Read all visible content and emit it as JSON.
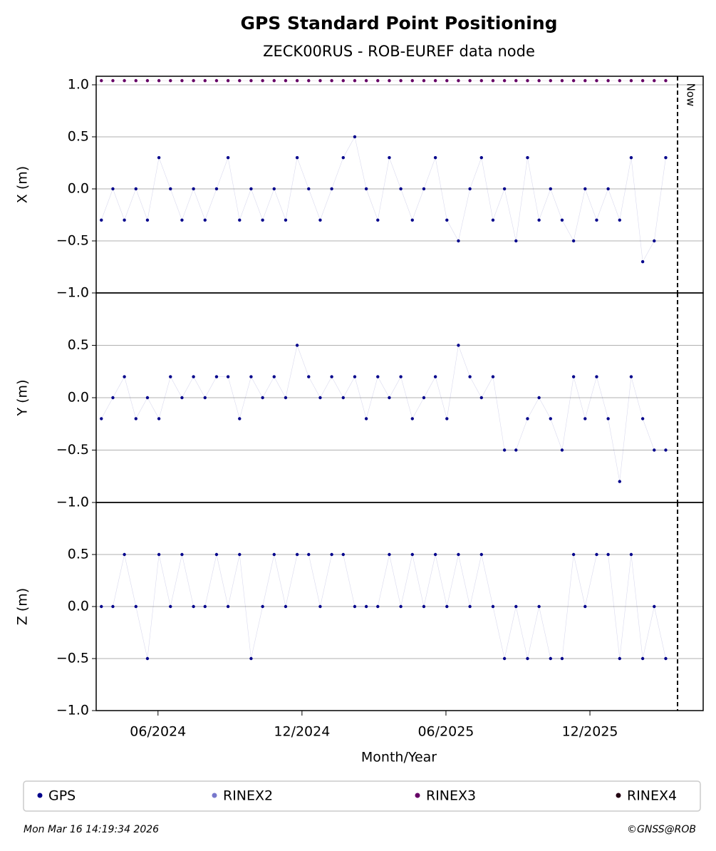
{
  "legend": [
    {
      "name": "GPS",
      "color": "#00008b"
    },
    {
      "name": "RINEX2",
      "color": "#7777cc"
    },
    {
      "name": "RINEX3",
      "color": "#660066"
    },
    {
      "name": "RINEX4",
      "color": "#220011"
    }
  ],
  "footer_left": "Mon Mar 16 14:19:34 2026",
  "footer_right": "©GNSS@ROB",
  "chart_data": [
    {
      "type": "line",
      "title": "GPS Standard Point Positioning",
      "subtitle": "ZECK00RUS - ROB-EUREF data node",
      "ylabel": "X (m)",
      "vline": {
        "x": 2026.221,
        "text": "Now"
      },
      "xlim": [
        2024.202,
        2026.31
      ],
      "ylim": [
        -1,
        1.082
      ],
      "grid": "y",
      "yticks": [
        {
          "value": -1,
          "label": "−1.0"
        },
        {
          "value": -0.5,
          "label": "−0.5"
        },
        {
          "value": 0,
          "label": "0.0"
        },
        {
          "value": 0.5,
          "label": "0.5"
        },
        {
          "value": 1,
          "label": "1.0"
        }
      ],
      "x": [
        2024.22,
        2024.26,
        2024.3,
        2024.34,
        2024.38,
        2024.42,
        2024.46,
        2024.5,
        2024.54,
        2024.58,
        2024.62,
        2024.66,
        2024.7,
        2024.74,
        2024.78,
        2024.82,
        2024.86,
        2024.9,
        2024.94,
        2024.98,
        2025.02,
        2025.06,
        2025.1,
        2025.14,
        2025.18,
        2025.22,
        2025.26,
        2025.3,
        2025.34,
        2025.38,
        2025.42,
        2025.46,
        2025.5,
        2025.54,
        2025.58,
        2025.62,
        2025.66,
        2025.7,
        2025.74,
        2025.78,
        2025.82,
        2025.86,
        2025.9,
        2025.94,
        2025.98,
        2026.02,
        2026.06,
        2026.1,
        2026.14,
        2026.18
      ],
      "series": [
        {
          "name": "GPS",
          "color": "#00008b",
          "values": [
            -0.3,
            0,
            -0.3,
            0,
            -0.3,
            0.3,
            0,
            -0.3,
            0,
            -0.3,
            0,
            0.3,
            -0.3,
            0,
            -0.3,
            0,
            -0.3,
            0.3,
            0,
            -0.3,
            0,
            0.3,
            0.5,
            0,
            -0.3,
            0.3,
            0,
            -0.3,
            0,
            0.3,
            -0.3,
            -0.5,
            0,
            0.3,
            -0.3,
            0,
            -0.5,
            0.3,
            -0.3,
            0,
            -0.3,
            -0.5,
            0,
            -0.3,
            0,
            -0.3,
            0.3,
            -0.7,
            -0.5,
            0.3
          ]
        },
        {
          "name": "RINEX3",
          "color": "#660066",
          "values": [
            1.04,
            1.04,
            1.04,
            1.04,
            1.04,
            1.04,
            1.04,
            1.04,
            1.04,
            1.04,
            1.04,
            1.04,
            1.04,
            1.04,
            1.04,
            1.04,
            1.04,
            1.04,
            1.04,
            1.04,
            1.04,
            1.04,
            1.04,
            1.04,
            1.04,
            1.04,
            1.04,
            1.04,
            1.04,
            1.04,
            1.04,
            1.04,
            1.04,
            1.04,
            1.04,
            1.04,
            1.04,
            1.04,
            1.04,
            1.04,
            1.04,
            1.04,
            1.04,
            1.04,
            1.04,
            1.04,
            1.04,
            1.04,
            1.04,
            1.04
          ]
        }
      ]
    },
    {
      "type": "line",
      "ylabel": "Y (m)",
      "vline": {
        "x": 2026.221
      },
      "xlim": [
        2024.202,
        2026.31
      ],
      "ylim": [
        -1,
        1
      ],
      "grid": "y",
      "yticks": [
        {
          "value": -1,
          "label": "−1.0"
        },
        {
          "value": -0.5,
          "label": "−0.5"
        },
        {
          "value": 0,
          "label": "0.0"
        },
        {
          "value": 0.5,
          "label": "0.5"
        }
      ],
      "x": [
        2024.22,
        2024.26,
        2024.3,
        2024.34,
        2024.38,
        2024.42,
        2024.46,
        2024.5,
        2024.54,
        2024.58,
        2024.62,
        2024.66,
        2024.7,
        2024.74,
        2024.78,
        2024.82,
        2024.86,
        2024.9,
        2024.94,
        2024.98,
        2025.02,
        2025.06,
        2025.1,
        2025.14,
        2025.18,
        2025.22,
        2025.26,
        2025.3,
        2025.34,
        2025.38,
        2025.42,
        2025.46,
        2025.5,
        2025.54,
        2025.58,
        2025.62,
        2025.66,
        2025.7,
        2025.74,
        2025.78,
        2025.82,
        2025.86,
        2025.9,
        2025.94,
        2025.98,
        2026.02,
        2026.06,
        2026.1,
        2026.14,
        2026.18
      ],
      "series": [
        {
          "name": "GPS",
          "color": "#00008b",
          "values": [
            -0.2,
            0,
            0.2,
            -0.2,
            0,
            -0.2,
            0.2,
            0,
            0.2,
            0,
            0.2,
            0.2,
            -0.2,
            0.2,
            0,
            0.2,
            0,
            0.5,
            0.2,
            0,
            0.2,
            0,
            0.2,
            -0.2,
            0.2,
            0,
            0.2,
            -0.2,
            0,
            0.2,
            -0.2,
            0.5,
            0.2,
            0,
            0.2,
            -0.5,
            -0.5,
            -0.2,
            0,
            -0.2,
            -0.5,
            0.2,
            -0.2,
            0.2,
            -0.2,
            -0.8,
            0.2,
            -0.2,
            -0.5,
            -0.5
          ]
        }
      ]
    },
    {
      "type": "line",
      "ylabel": "Z (m)",
      "xlabel": "Month/Year",
      "vline": {
        "x": 2026.221
      },
      "xlim": [
        2024.202,
        2026.31
      ],
      "ylim": [
        -1,
        1
      ],
      "grid": "y",
      "yticks": [
        {
          "value": -1,
          "label": "−1.0"
        },
        {
          "value": -0.5,
          "label": "−0.5"
        },
        {
          "value": 0,
          "label": "0.0"
        },
        {
          "value": 0.5,
          "label": "0.5"
        }
      ],
      "xticks": [
        {
          "value": 2024.4167,
          "label": "06/2024"
        },
        {
          "value": 2024.9167,
          "label": "12/2024"
        },
        {
          "value": 2025.4167,
          "label": "06/2025"
        },
        {
          "value": 2025.9167,
          "label": "12/2025"
        }
      ],
      "x": [
        2024.22,
        2024.26,
        2024.3,
        2024.34,
        2024.38,
        2024.42,
        2024.46,
        2024.5,
        2024.54,
        2024.58,
        2024.62,
        2024.66,
        2024.7,
        2024.74,
        2024.78,
        2024.82,
        2024.86,
        2024.9,
        2024.94,
        2024.98,
        2025.02,
        2025.06,
        2025.1,
        2025.14,
        2025.18,
        2025.22,
        2025.26,
        2025.3,
        2025.34,
        2025.38,
        2025.42,
        2025.46,
        2025.5,
        2025.54,
        2025.58,
        2025.62,
        2025.66,
        2025.7,
        2025.74,
        2025.78,
        2025.82,
        2025.86,
        2025.9,
        2025.94,
        2025.98,
        2026.02,
        2026.06,
        2026.1,
        2026.14,
        2026.18
      ],
      "series": [
        {
          "name": "GPS",
          "color": "#00008b",
          "values": [
            0,
            0,
            0.5,
            0,
            -0.5,
            0.5,
            0,
            0.5,
            0,
            0,
            0.5,
            0,
            0.5,
            -0.5,
            0,
            0.5,
            0,
            0.5,
            0.5,
            0,
            0.5,
            0.5,
            0,
            0,
            0,
            0.5,
            0,
            0.5,
            0,
            0.5,
            0,
            0.5,
            0,
            0.5,
            0,
            -0.5,
            0,
            -0.5,
            0,
            -0.5,
            -0.5,
            0.5,
            0,
            0.5,
            0.5,
            -0.5,
            0.5,
            -0.5,
            0,
            -0.5
          ]
        }
      ]
    }
  ]
}
